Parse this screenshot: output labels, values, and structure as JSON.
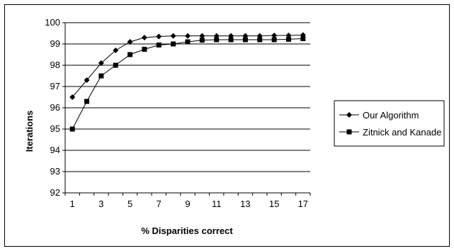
{
  "chart_data": {
    "type": "line",
    "xlabel": "% Disparities correct",
    "ylabel": "Iterations",
    "x": [
      1,
      2,
      3,
      4,
      5,
      6,
      7,
      8,
      9,
      10,
      11,
      12,
      13,
      14,
      15,
      16,
      17
    ],
    "x_tick_labels": [
      "1",
      "3",
      "5",
      "7",
      "9",
      "11",
      "13",
      "15",
      "17"
    ],
    "ylim": [
      92,
      100
    ],
    "y_tick_labels": [
      "92",
      "93",
      "94",
      "95",
      "96",
      "97",
      "98",
      "99",
      "100"
    ],
    "grid": "horizontal",
    "legend_position": "right",
    "series": [
      {
        "name": "Our Algorithm",
        "marker": "diamond",
        "color": "#000000",
        "values": [
          96.5,
          97.3,
          98.1,
          98.7,
          99.1,
          99.3,
          99.35,
          99.38,
          99.38,
          99.38,
          99.38,
          99.38,
          99.38,
          99.38,
          99.4,
          99.4,
          99.42
        ]
      },
      {
        "name": "Zitnick and Kanade",
        "marker": "square",
        "color": "#000000",
        "values": [
          95.0,
          96.3,
          97.5,
          98.0,
          98.5,
          98.75,
          98.95,
          99.0,
          99.1,
          99.18,
          99.2,
          99.2,
          99.2,
          99.2,
          99.2,
          99.22,
          99.25
        ]
      }
    ]
  }
}
